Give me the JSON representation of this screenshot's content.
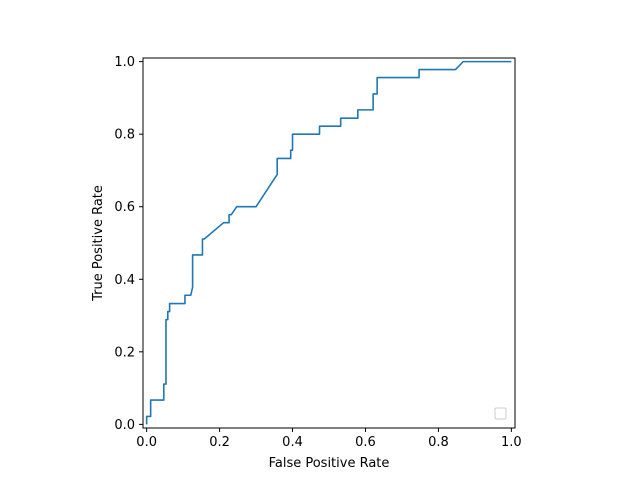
{
  "chart_data": {
    "type": "line",
    "title": "",
    "xlabel": "False Positive Rate",
    "ylabel": "True Positive Rate",
    "xlim": [
      -0.01,
      1.01
    ],
    "ylim": [
      -0.01,
      1.01
    ],
    "xticks": [
      "0.0",
      "0.2",
      "0.4",
      "0.6",
      "0.8",
      "1.0"
    ],
    "yticks": [
      "0.0",
      "0.2",
      "0.4",
      "0.6",
      "0.8",
      "1.0"
    ],
    "xtick_values": [
      0,
      0.2,
      0.4,
      0.6,
      0.8,
      1.0
    ],
    "ytick_values": [
      0,
      0.2,
      0.4,
      0.6,
      0.8,
      1.0
    ],
    "grid": false,
    "legend": {
      "placement": "lower-right",
      "entries": []
    },
    "series": [
      {
        "color": "#1f77b4",
        "x": [
          0,
          0,
          0.011,
          0.011,
          0.047,
          0.047,
          0.053,
          0.053,
          0.058,
          0.058,
          0.063,
          0.063,
          0.105,
          0.105,
          0.121,
          0.126,
          0.126,
          0.153,
          0.153,
          0.158,
          0.211,
          0.226,
          0.226,
          0.232,
          0.247,
          0.3,
          0.358,
          0.358,
          0.395,
          0.395,
          0.4,
          0.4,
          0.474,
          0.474,
          0.532,
          0.532,
          0.579,
          0.579,
          0.621,
          0.621,
          0.632,
          0.632,
          0.747,
          0.747,
          0.847,
          0.868,
          1.0
        ],
        "y": [
          0,
          0.022,
          0.022,
          0.067,
          0.067,
          0.111,
          0.111,
          0.289,
          0.289,
          0.311,
          0.311,
          0.333,
          0.333,
          0.356,
          0.356,
          0.378,
          0.467,
          0.467,
          0.511,
          0.511,
          0.556,
          0.556,
          0.578,
          0.578,
          0.6,
          0.6,
          0.689,
          0.733,
          0.733,
          0.756,
          0.756,
          0.8,
          0.8,
          0.822,
          0.822,
          0.844,
          0.844,
          0.867,
          0.867,
          0.911,
          0.911,
          0.956,
          0.956,
          0.978,
          0.978,
          1.0,
          1.0
        ]
      }
    ]
  }
}
